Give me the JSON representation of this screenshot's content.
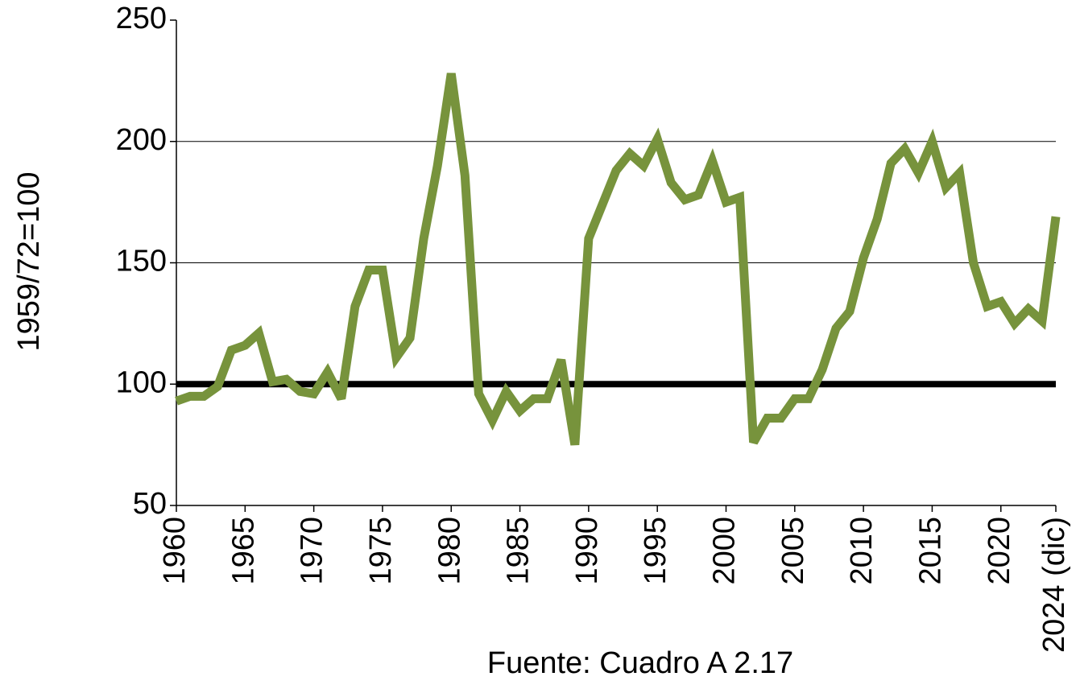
{
  "chart_data": {
    "type": "line",
    "y_label": "1959/72=100",
    "note": "Fuente: Cuadro A 2.17",
    "x": [
      1960,
      1961,
      1962,
      1963,
      1964,
      1965,
      1966,
      1967,
      1968,
      1969,
      1970,
      1971,
      1972,
      1973,
      1974,
      1975,
      1976,
      1977,
      1978,
      1979,
      1980,
      1981,
      1982,
      1983,
      1984,
      1985,
      1986,
      1987,
      1988,
      1989,
      1990,
      1991,
      1992,
      1993,
      1994,
      1995,
      1996,
      1997,
      1998,
      1999,
      2000,
      2001,
      2002,
      2003,
      2004,
      2005,
      2006,
      2007,
      2008,
      2009,
      2010,
      2011,
      2012,
      2013,
      2014,
      2015,
      2016,
      2017,
      2018,
      2019,
      2020,
      2021,
      2022,
      2023,
      2024
    ],
    "series": [
      {
        "color": "#77933c",
        "values": [
          93,
          95,
          95,
          99,
          114,
          116,
          121,
          101,
          102,
          97,
          96,
          105,
          94,
          132,
          147,
          147,
          111,
          119,
          160,
          190,
          228,
          186,
          96,
          85,
          97,
          89,
          94,
          94,
          110,
          75,
          160,
          174,
          188,
          195,
          190,
          201,
          183,
          176,
          178,
          192,
          175,
          177,
          76,
          86,
          86,
          94,
          94,
          106,
          123,
          130,
          152,
          168,
          191,
          197,
          187,
          200,
          181,
          187,
          150,
          132,
          134,
          125,
          131,
          126,
          169
        ]
      }
    ],
    "reference_line": 100,
    "xlim": [
      1960,
      2024
    ],
    "xticks": [
      1960,
      1965,
      1970,
      1975,
      1980,
      1985,
      1990,
      1995,
      2000,
      2005,
      2010,
      2015,
      2020,
      {
        "value": 2024,
        "label": "2024 (dic)"
      }
    ],
    "ylim": [
      50,
      250
    ],
    "yticks": [
      50,
      100,
      150,
      200,
      250
    ],
    "grid": true
  }
}
